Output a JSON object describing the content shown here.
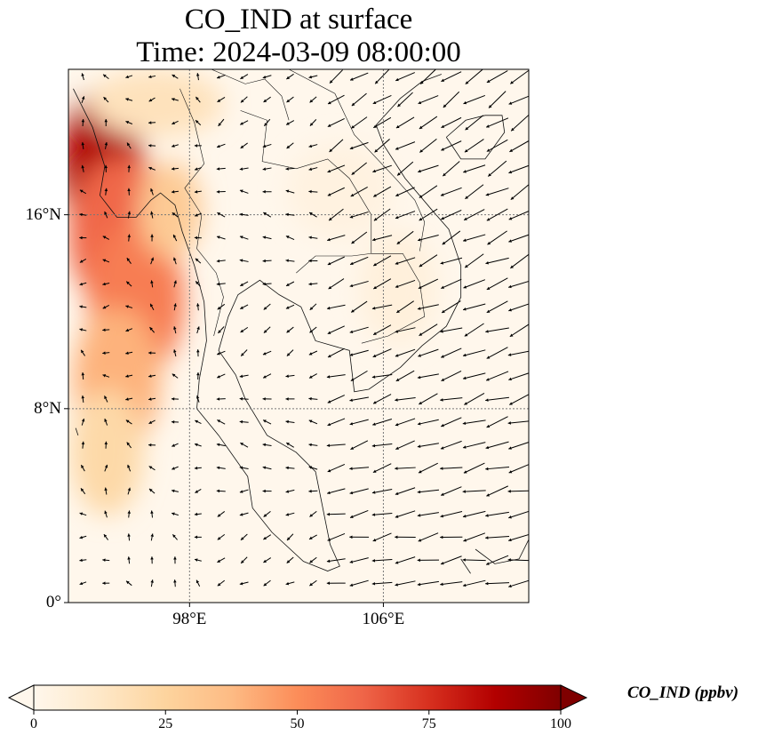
{
  "figure": {
    "title_line1": "CO_IND at surface",
    "title_line2": "Time: 2024-03-09 08:00:00"
  },
  "map": {
    "projection": "PlateCarree",
    "lon_range": [
      93,
      112
    ],
    "lat_range": [
      0,
      22
    ],
    "gridline_style": "dotted",
    "lat_ticks": [
      {
        "value": 16,
        "label": "16°N"
      },
      {
        "value": 8,
        "label": "8°N"
      },
      {
        "value": 0,
        "label": "0°"
      }
    ],
    "lon_ticks": [
      {
        "value": 98,
        "label": "98°E"
      },
      {
        "value": 106,
        "label": "106°E"
      }
    ],
    "variable": "CO_IND",
    "units": "ppbv",
    "vector_field": "surface wind arrows"
  },
  "colorbar": {
    "label": "CO_IND (ppbv)",
    "colormap": "OrRd",
    "colors": [
      "#fff7ec",
      "#fee8c8",
      "#fdd49e",
      "#fdbb84",
      "#fc8d59",
      "#ef6548",
      "#d7301f",
      "#b30000",
      "#7f0000"
    ],
    "range": [
      0,
      100
    ],
    "extend": "both",
    "ticks": [
      {
        "value": 0,
        "label": "0"
      },
      {
        "value": 25,
        "label": "25"
      },
      {
        "value": 50,
        "label": "50"
      },
      {
        "value": 75,
        "label": "75"
      },
      {
        "value": 100,
        "label": "100"
      }
    ]
  }
}
